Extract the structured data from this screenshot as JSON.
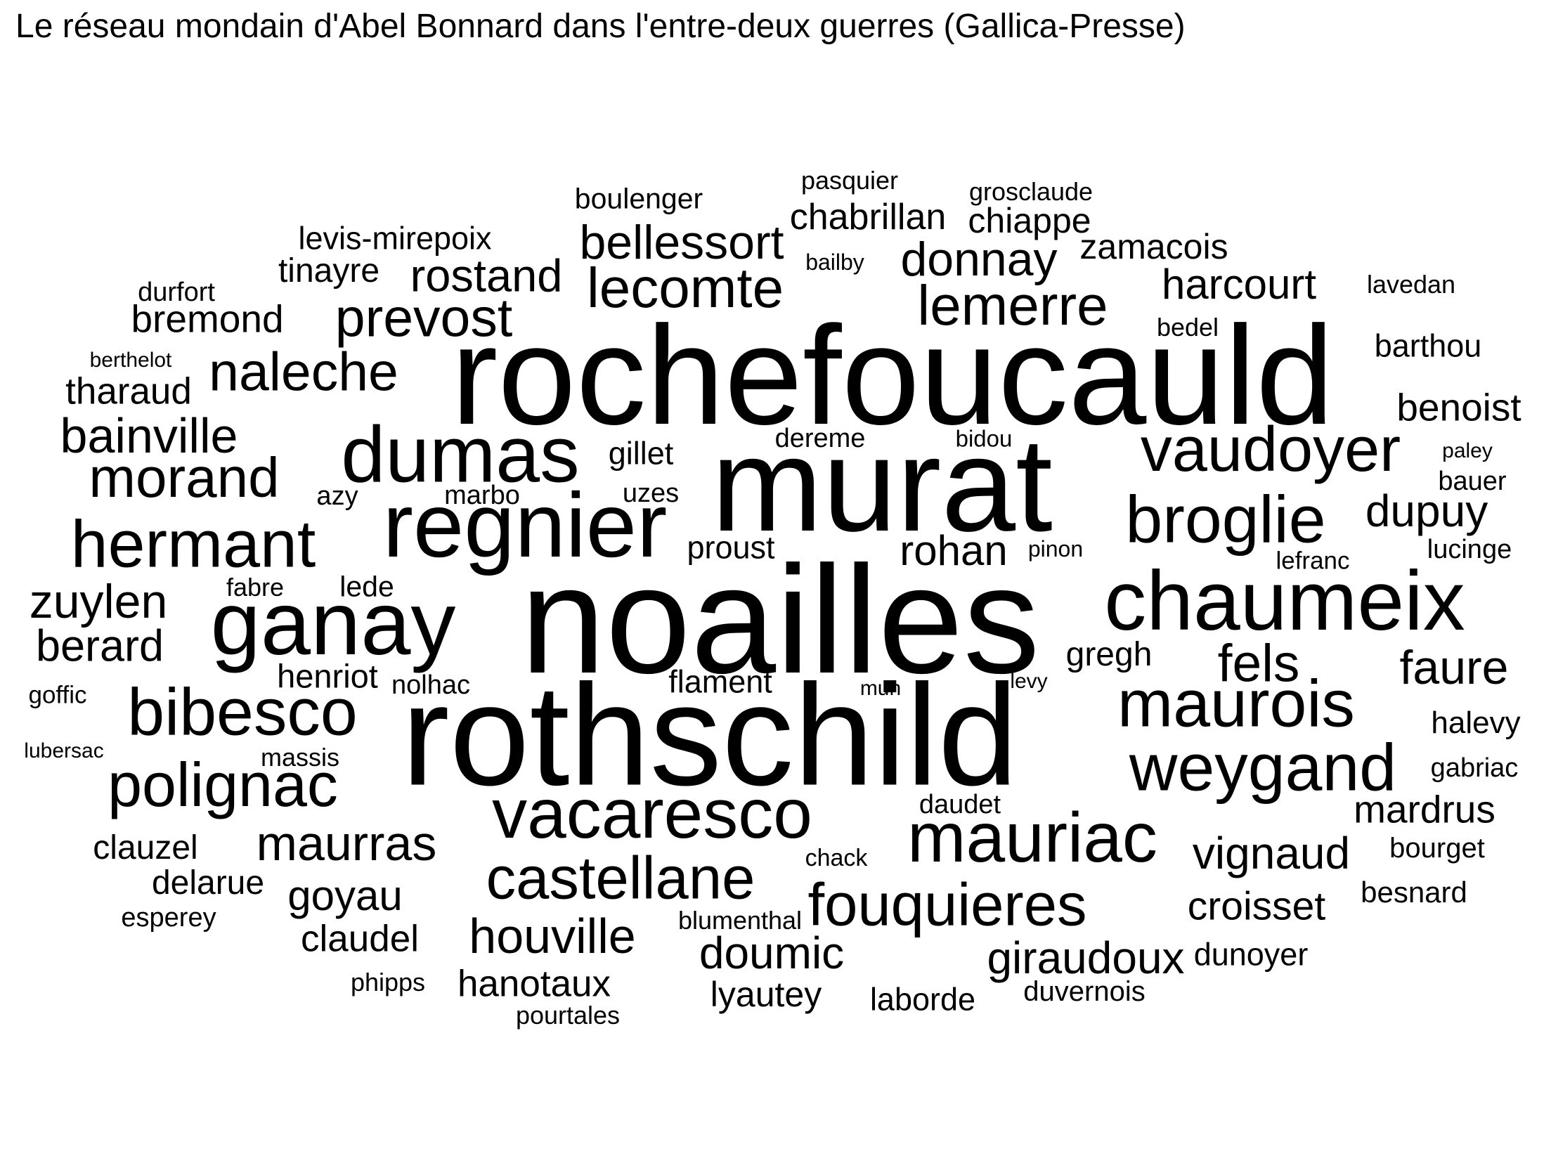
{
  "title": "Le réseau mondain d'Abel Bonnard dans l'entre-deux guerres (Gallica-Presse)",
  "words": [
    "noailles",
    "rochefoucauld",
    "rothschild",
    "murat",
    "regnier",
    "ganay",
    "chaumeix",
    "dumas",
    "vaudoyer",
    "broglie",
    "hermant",
    "maurois",
    "weygand",
    "vacaresco",
    "mauriac",
    "castellane",
    "bibesco",
    "polignac",
    "lecomte",
    "lemerre",
    "prevost",
    "morand",
    "fouquieres",
    "bellessort",
    "naleche",
    "bainville",
    "zuylen",
    "rostand",
    "donnay",
    "houville",
    "maurras",
    "harcourt",
    "vignaud",
    "fels",
    "faure",
    "doumic",
    "giraudoux",
    "croisset",
    "benoist",
    "dupuy",
    "rohan",
    "berard",
    "goyau",
    "bremond",
    "mardrus",
    "zamacois",
    "chabrillan",
    "chiappe",
    "hanotaux",
    "lyautey",
    "tharaud",
    "claudel",
    "tinayre",
    "clauzel",
    "delarue",
    "barthou",
    "levis-mirepoix",
    "gregh",
    "henriot",
    "halevy",
    "boulenger",
    "flament",
    "laborde",
    "dunoyer",
    "gabriac",
    "proust",
    "gillet",
    "besnard",
    "duvernois",
    "dereme",
    "bourget",
    "uzes",
    "marbo",
    "daudet",
    "durfort",
    "grosclaude",
    "pasquier",
    "lede",
    "bauer",
    "lucinge",
    "lavedan",
    "nolhac",
    "esperey",
    "blumenthal",
    "pourtales",
    "bedel",
    "azy",
    "phipps",
    "fabre",
    "massis",
    "lefranc",
    "goffic",
    "bidou",
    "chack",
    "pinon",
    "bailby",
    "paley",
    "berthelot",
    "lubersac",
    "mun",
    "levy"
  ]
}
